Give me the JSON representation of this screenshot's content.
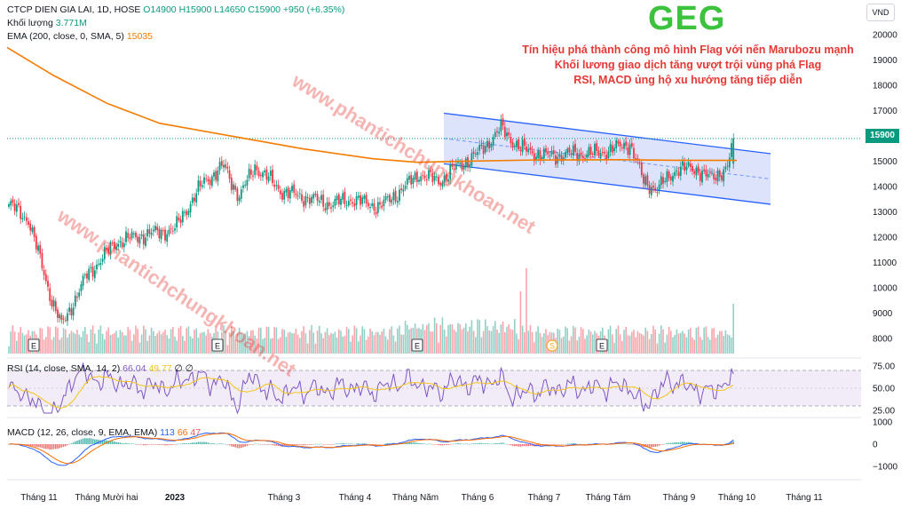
{
  "legend": {
    "symbol": "CTCP DIEN GIA LAI, 1D, HOSE",
    "ohlc": "O14900 H15900 L14650 C15900 +950 (+6.35%)",
    "volume_label": "Khối lượng",
    "volume_value": "3.771M",
    "ema_label": "EMA (200, close, 0, SMA, 5)",
    "ema_value": "15035"
  },
  "ticker": "GEG",
  "notes": [
    "Tín hiệu phá thành công mô hình Flag với nến Marubozu mạnh",
    "Khối lương giao dịch tăng vượt trội vùng phá Flag",
    "RSI, MACD ủng hộ xu hướng tăng tiếp diễn"
  ],
  "currency": "VND",
  "last_price": "15900",
  "watermarks": [
    "www.phantichchungkhoan.net",
    "www.phantichchungkhoan.net"
  ],
  "rsi_label": {
    "name": "RSI (14, close, SMA, 14, 2)",
    "value": "66.04",
    "ma": "49.77",
    "extra": "∅ ∅"
  },
  "macd_label": {
    "name": "MACD (12, 26, close, 9, EMA, EMA)",
    "v1": "113",
    "v2": "66",
    "v3": "47"
  },
  "event_markers": [
    "E",
    "E",
    "E",
    "E",
    "S"
  ],
  "colors": {
    "up": "#089981",
    "down": "#f23645",
    "ema": "#f57c00",
    "channel": "#2962ff",
    "channel_fill": "#c5d0f7",
    "rsi": "#7e57c2",
    "rsi_ma": "#f5c518",
    "macd": "#2962ff",
    "signal": "#ff6d00",
    "note": "#e53935",
    "ticker": "#3cc23c"
  },
  "chart_data": {
    "type": "candlestick",
    "x_ticks": [
      "Tháng 11",
      "Tháng Mười hai",
      "2023",
      "Tháng 3",
      "Tháng 4",
      "Tháng Năm",
      "Tháng 6",
      "Tháng 7",
      "Tháng Tám",
      "Tháng 9",
      "Tháng 10",
      "Tháng 11"
    ],
    "y_ticks": [
      20000,
      19000,
      18000,
      17000,
      16000,
      15000,
      14000,
      13000,
      12000,
      11000,
      10000,
      9000,
      8000
    ],
    "ylim": [
      7500,
      20500
    ],
    "close_series": [
      {
        "x": "Tháng 11",
        "y": 13300
      },
      {
        "x": "Tháng 11",
        "y": 8500
      },
      {
        "x": "Tháng 11",
        "y": 9500
      },
      {
        "x": "Tháng Mười hai",
        "y": 11000
      },
      {
        "x": "Tháng Mười hai",
        "y": 12300
      },
      {
        "x": "Tháng Mười hai",
        "y": 13000
      },
      {
        "x": "2023",
        "y": 14800
      },
      {
        "x": "2023",
        "y": 15300
      },
      {
        "x": "2023",
        "y": 14200
      },
      {
        "x": "Tháng 3",
        "y": 13600
      },
      {
        "x": "Tháng 3",
        "y": 13300
      },
      {
        "x": "Tháng 3",
        "y": 13500
      },
      {
        "x": "Tháng 4",
        "y": 13300
      },
      {
        "x": "Tháng 4",
        "y": 14500
      },
      {
        "x": "Tháng 4",
        "y": 14200
      },
      {
        "x": "Tháng Năm",
        "y": 15500
      },
      {
        "x": "Tháng Năm",
        "y": 15400
      },
      {
        "x": "Tháng 6",
        "y": 16200
      },
      {
        "x": "Tháng 6",
        "y": 15500
      },
      {
        "x": "Tháng 7",
        "y": 15300
      },
      {
        "x": "Tháng 7",
        "y": 15200
      },
      {
        "x": "Tháng Tám",
        "y": 15600
      },
      {
        "x": "Tháng Tám",
        "y": 14200
      },
      {
        "x": "Tháng 9",
        "y": 14700
      },
      {
        "x": "Tháng 9",
        "y": 14800
      },
      {
        "x": "Tháng 10",
        "y": 15900
      }
    ],
    "ema200_series": [
      {
        "x": "Tháng 11",
        "y": 19500
      },
      {
        "x": "Tháng Mười hai",
        "y": 18000
      },
      {
        "x": "2023",
        "y": 16300
      },
      {
        "x": "Tháng 3",
        "y": 15800
      },
      {
        "x": "Tháng 4",
        "y": 15300
      },
      {
        "x": "Tháng Năm",
        "y": 15000
      },
      {
        "x": "Tháng 6",
        "y": 15050
      },
      {
        "x": "Tháng 7",
        "y": 15050
      },
      {
        "x": "Tháng Tám",
        "y": 15050
      },
      {
        "x": "Tháng 9",
        "y": 15035
      },
      {
        "x": "Tháng 10",
        "y": 15035
      }
    ],
    "flag_channel": {
      "upper": [
        {
          "x": "Tháng Năm",
          "y": 16900
        },
        {
          "x": "Tháng 10",
          "y": 15300
        }
      ],
      "lower": [
        {
          "x": "Tháng Năm",
          "y": 14900
        },
        {
          "x": "Tháng 10",
          "y": 13300
        }
      ]
    },
    "rsi": {
      "y_ticks": [
        75,
        50,
        25
      ],
      "levels": [
        70,
        30
      ],
      "last": 66.04
    },
    "macd": {
      "y_ticks": [
        1000,
        0,
        -1000
      ],
      "last": 113
    }
  }
}
